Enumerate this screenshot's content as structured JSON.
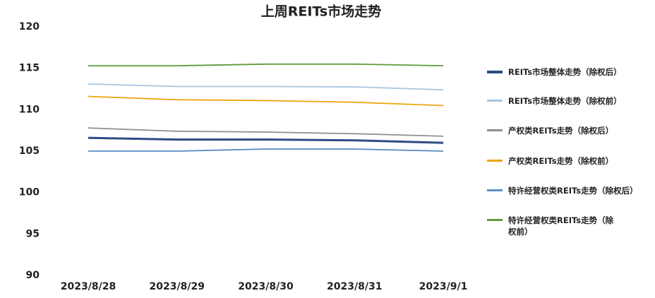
{
  "chart_data": {
    "type": "line",
    "title": "上周REITs市场走势",
    "categories": [
      "2023/8/28",
      "2023/8/29",
      "2023/8/30",
      "2023/8/31",
      "2023/9/1"
    ],
    "ylim": [
      90,
      120
    ],
    "yticks": [
      90,
      95,
      100,
      105,
      110,
      115,
      120
    ],
    "grid": false,
    "series": [
      {
        "name": "REITs市场整体走势（除权后）",
        "color": "#2e4a87",
        "values": [
          106.6,
          106.4,
          106.4,
          106.3,
          106.0
        ]
      },
      {
        "name": "REITs市场整体走势（除权前）",
        "color": "#a8c4dd",
        "values": [
          113.1,
          112.8,
          112.8,
          112.75,
          112.4
        ]
      },
      {
        "name": "产权类REITs走势（除权后）",
        "color": "#8f8f8f",
        "values": [
          107.8,
          107.4,
          107.3,
          107.1,
          106.8
        ]
      },
      {
        "name": "产权类REITs走势（除权前）",
        "color": "#efa30c",
        "values": [
          111.6,
          111.2,
          111.1,
          110.9,
          110.5
        ]
      },
      {
        "name": "特许经营权类REITs走势（除权后）",
        "color": "#5b8ec2",
        "values": [
          105.0,
          105.0,
          105.25,
          105.25,
          105.0
        ]
      },
      {
        "name": "特许经营权类REITs走势（除权前）",
        "color": "#5e9b3e",
        "values": [
          115.3,
          115.3,
          115.5,
          115.5,
          115.3
        ]
      }
    ]
  }
}
